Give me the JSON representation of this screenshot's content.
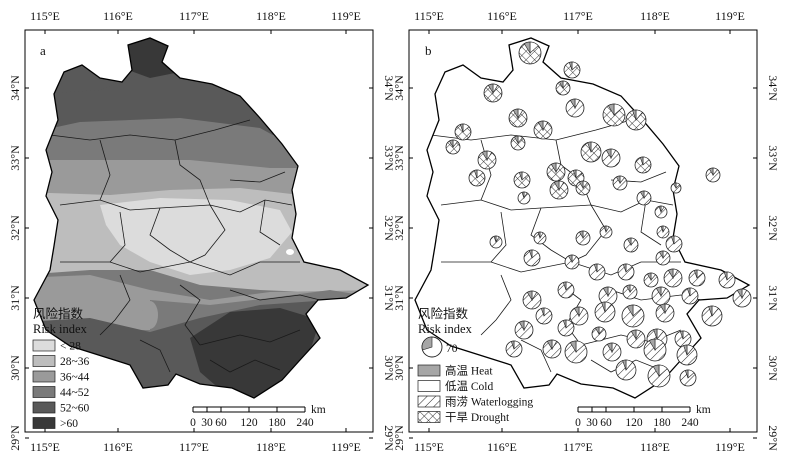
{
  "panel_a": {
    "letter": "a",
    "legend": {
      "title_cn": "风险指数",
      "title_en": "Risk index",
      "classes": [
        {
          "label": "< 28",
          "color": "#dcdcdc"
        },
        {
          "label": "28~36",
          "color": "#bdbdbd"
        },
        {
          "label": "36~44",
          "color": "#9a9a9a"
        },
        {
          "label": "44~52",
          "color": "#7a7a7a"
        },
        {
          "label": "52~60",
          "color": "#595959"
        },
        {
          "label": ">60",
          "color": "#383838"
        }
      ]
    }
  },
  "panel_b": {
    "letter": "b",
    "legend": {
      "title_cn": "风险指数",
      "title_en": "Risk index",
      "size_value": "70",
      "items": [
        {
          "label": "高温 Heat",
          "pattern": "gray"
        },
        {
          "label": "低温 Cold",
          "pattern": "white"
        },
        {
          "label": "雨涝 Waterlogging",
          "pattern": "hatch"
        },
        {
          "label": "干旱 Drought",
          "pattern": "cross"
        }
      ]
    }
  },
  "axes": {
    "lon_labels": [
      "115°E",
      "116°E",
      "117°E",
      "118°E",
      "119°E"
    ],
    "lat_labels": [
      "34°N",
      "33°N",
      "32°N",
      "31°N",
      "30°N",
      "29°N"
    ]
  },
  "scale_bar": {
    "unit": "km",
    "ticks": [
      "0",
      "30",
      "60",
      "120",
      "180",
      "240"
    ]
  },
  "colors": {
    "frame": "#000000",
    "gray_fill": "#a6a6a6",
    "background": "#ffffff"
  }
}
